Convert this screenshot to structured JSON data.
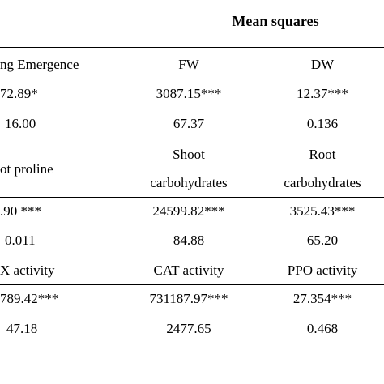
{
  "header": {
    "title": "Mean squares"
  },
  "sections": [
    {
      "headers": [
        "ng Emergence",
        "FW",
        "DW"
      ],
      "rows": [
        [
          "72.89*",
          "3087.15***",
          "12.37***"
        ],
        [
          "16.00",
          "67.37",
          "0.136"
        ]
      ]
    },
    {
      "headers": [
        "ot proline",
        "Shoot",
        "Root"
      ],
      "headers_line2": [
        "",
        "carbohydrates",
        "carbohydrates"
      ],
      "rows": [
        [
          ".90 ***",
          "24599.82***",
          "3525.43***"
        ],
        [
          "0.011",
          "84.88",
          "65.20"
        ]
      ]
    },
    {
      "headers": [
        "X activity",
        "CAT  activity",
        "PPO  activity"
      ],
      "rows": [
        [
          "789.42***",
          "731187.97***",
          "27.354***"
        ],
        [
          "47.18",
          "2477.65",
          "0.468"
        ]
      ]
    }
  ]
}
